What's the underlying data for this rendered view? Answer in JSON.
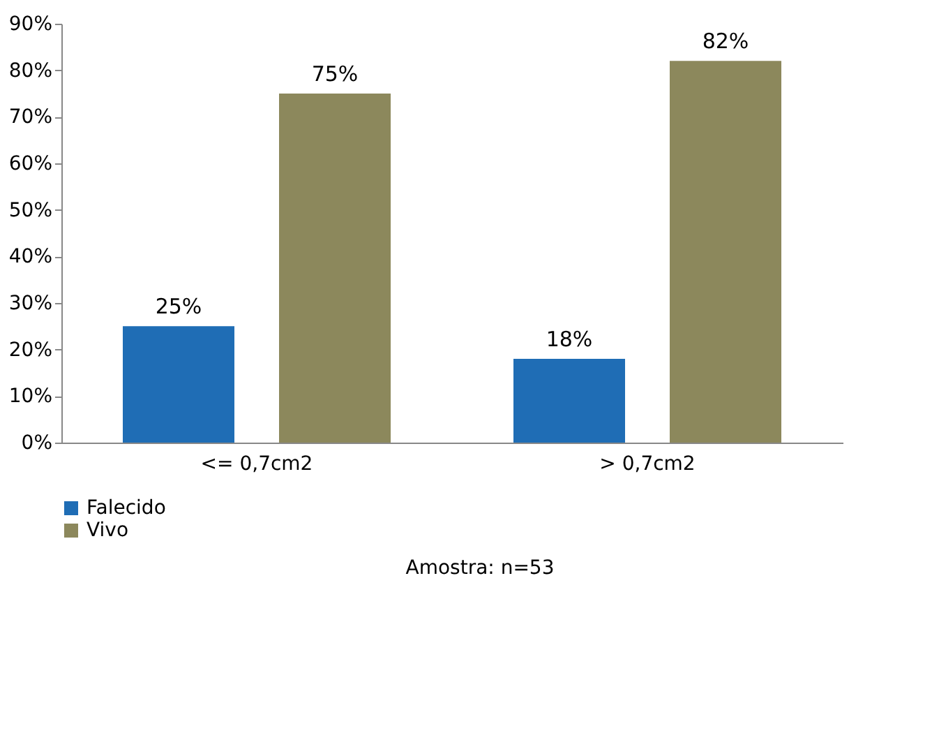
{
  "chart_data": {
    "type": "bar",
    "categories": [
      "<= 0,7cm2",
      "> 0,7cm2"
    ],
    "series": [
      {
        "name": "Falecido",
        "color": "#1f6db5",
        "values": [
          25,
          18
        ],
        "value_labels": [
          "25%",
          "18%"
        ]
      },
      {
        "name": "Vivo",
        "color": "#8c885c",
        "values": [
          75,
          82
        ],
        "value_labels": [
          "75%",
          "82%"
        ]
      }
    ],
    "ylim": [
      0,
      90
    ],
    "yticks": [
      {
        "value": 0,
        "label": "0%"
      },
      {
        "value": 10,
        "label": "10%"
      },
      {
        "value": 20,
        "label": "20%"
      },
      {
        "value": 30,
        "label": "30%"
      },
      {
        "value": 40,
        "label": "40%"
      },
      {
        "value": 50,
        "label": "50%"
      },
      {
        "value": 60,
        "label": "60%"
      },
      {
        "value": 70,
        "label": "70%"
      },
      {
        "value": 80,
        "label": "80%"
      },
      {
        "value": 90,
        "label": "90%"
      }
    ],
    "grid": false,
    "legend": "bottom",
    "annotations": [
      "Amostra: n=53"
    ]
  }
}
